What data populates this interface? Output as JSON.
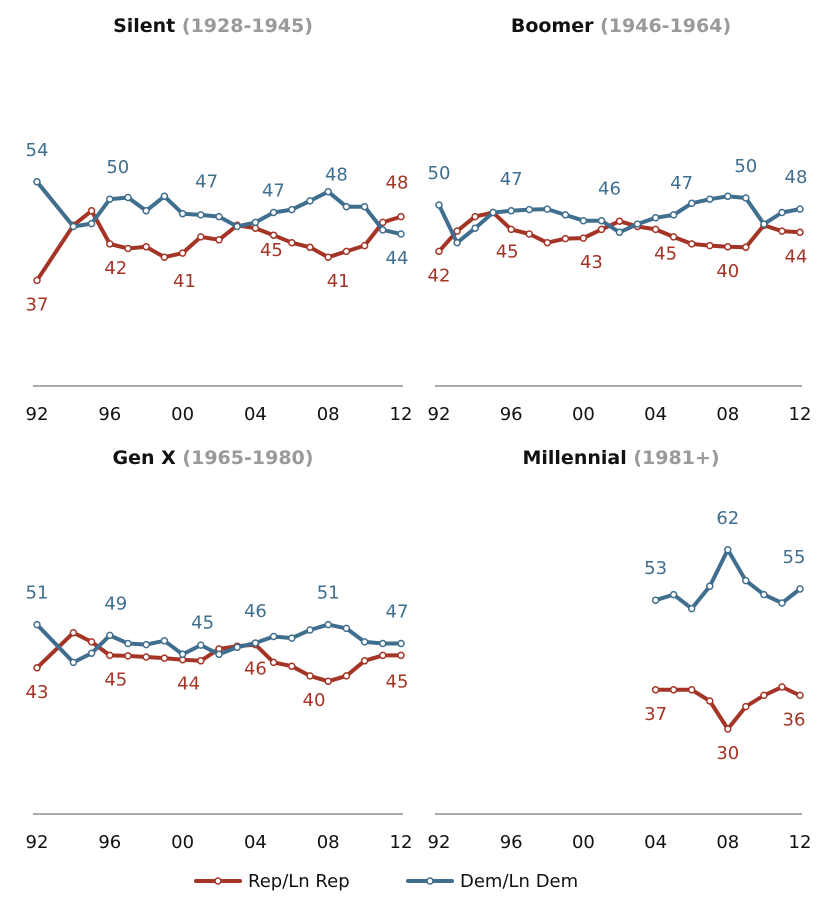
{
  "colors": {
    "rep": "#a43426",
    "dem": "#3f6e8f",
    "axis": "#555555",
    "subtitle": "#9a9a9a"
  },
  "legend": [
    {
      "key": "rep",
      "label": "Rep/Ln Rep"
    },
    {
      "key": "dem",
      "label": "Dem/Ln Dem"
    }
  ],
  "chart_data": [
    {
      "type": "line",
      "title": "Silent",
      "subtitle": "(1928-1945)",
      "x_ticks": [
        "92",
        "96",
        "00",
        "04",
        "08",
        "12"
      ],
      "xlim": [
        1992,
        2012
      ],
      "ylim": [
        20,
        65
      ],
      "series": [
        {
          "name": "Rep/Ln Rep",
          "key": "rep",
          "x": [
            1992,
            1994,
            1995,
            1996,
            1997,
            1998,
            1999,
            2000,
            2001,
            2002,
            2003,
            2004,
            2005,
            2006,
            2007,
            2008,
            2009,
            2010,
            2011,
            2012
          ],
          "values": [
            37,
            46.5,
            49,
            43.3,
            42.5,
            42.8,
            41,
            41.7,
            44.5,
            44,
            46.5,
            46,
            44.8,
            43.5,
            42.7,
            41,
            42,
            43,
            47,
            48
          ]
        },
        {
          "name": "Dem/Ln Dem",
          "key": "dem",
          "x": [
            1992,
            1994,
            1995,
            1996,
            1997,
            1998,
            1999,
            2000,
            2001,
            2002,
            2003,
            2004,
            2005,
            2006,
            2007,
            2008,
            2009,
            2010,
            2011,
            2012
          ],
          "values": [
            54,
            46.3,
            46.8,
            51,
            51.3,
            49,
            51.5,
            48.5,
            48.3,
            48,
            46.3,
            47,
            48.7,
            49.2,
            50.7,
            52.3,
            49.7,
            49.7,
            45.7,
            45
          ]
        }
      ],
      "data_labels": [
        {
          "series": "rep",
          "text": "37"
        },
        {
          "series": "rep",
          "text": "42"
        },
        {
          "series": "rep",
          "text": "41"
        },
        {
          "series": "rep",
          "text": "45"
        },
        {
          "series": "rep",
          "text": "41"
        },
        {
          "series": "rep",
          "text": "48"
        },
        {
          "series": "dem",
          "text": "54"
        },
        {
          "series": "dem",
          "text": "50"
        },
        {
          "series": "dem",
          "text": "47"
        },
        {
          "series": "dem",
          "text": "47"
        },
        {
          "series": "dem",
          "text": "48"
        },
        {
          "series": "dem",
          "text": "44"
        }
      ]
    },
    {
      "type": "line",
      "title": "Boomer",
      "subtitle": "(1946-1964)",
      "x_ticks": [
        "92",
        "96",
        "00",
        "04",
        "08",
        "12"
      ],
      "xlim": [
        1992,
        2012
      ],
      "ylim": [
        20,
        65
      ],
      "series": [
        {
          "name": "Rep/Ln Rep",
          "key": "rep",
          "x": [
            1992,
            1993,
            1994,
            1995,
            1996,
            1997,
            1998,
            1999,
            2000,
            2001,
            2002,
            2003,
            2004,
            2005,
            2006,
            2007,
            2008,
            2009,
            2010,
            2011,
            2012
          ],
          "values": [
            42,
            45.5,
            48,
            48.7,
            45.8,
            45,
            43.5,
            44.2,
            44.3,
            45.8,
            47.2,
            46.3,
            45.8,
            44.5,
            43.3,
            43,
            42.8,
            42.7,
            46.5,
            45.5,
            45.3
          ]
        },
        {
          "name": "Dem/Ln Dem",
          "key": "dem",
          "x": [
            1992,
            1993,
            1994,
            1995,
            1996,
            1997,
            1998,
            1999,
            2000,
            2001,
            2002,
            2003,
            2004,
            2005,
            2006,
            2007,
            2008,
            2009,
            2010,
            2011,
            2012
          ],
          "values": [
            50,
            43.5,
            46,
            48.7,
            49,
            49.2,
            49.3,
            48.3,
            47.3,
            47.3,
            45.3,
            46.7,
            47.8,
            48.3,
            50.3,
            51,
            51.5,
            51.2,
            46.7,
            48.7,
            49.3
          ]
        }
      ],
      "data_labels": [
        {
          "series": "rep",
          "text": "42"
        },
        {
          "series": "rep",
          "text": "45"
        },
        {
          "series": "rep",
          "text": "43"
        },
        {
          "series": "rep",
          "text": "45"
        },
        {
          "series": "rep",
          "text": "40"
        },
        {
          "series": "rep",
          "text": "44"
        },
        {
          "series": "dem",
          "text": "50"
        },
        {
          "series": "dem",
          "text": "47"
        },
        {
          "series": "dem",
          "text": "46"
        },
        {
          "series": "dem",
          "text": "47"
        },
        {
          "series": "dem",
          "text": "50"
        },
        {
          "series": "dem",
          "text": "48"
        }
      ]
    },
    {
      "type": "line",
      "title": "Gen X",
      "subtitle": "(1965-1980)",
      "x_ticks": [
        "92",
        "96",
        "00",
        "04",
        "08",
        "12"
      ],
      "xlim": [
        1992,
        2012
      ],
      "ylim": [
        20,
        65
      ],
      "series": [
        {
          "name": "Rep/Ln Rep",
          "key": "rep",
          "x": [
            1992,
            1994,
            1995,
            1996,
            1997,
            1998,
            1999,
            2000,
            2001,
            2002,
            2003,
            2004,
            2005,
            2006,
            2007,
            2008,
            2009,
            2010,
            2011,
            2012
          ],
          "values": [
            43,
            49.5,
            47.8,
            45.3,
            45.2,
            45,
            44.8,
            44.5,
            44.3,
            46.5,
            47,
            47.3,
            44,
            43.3,
            41.5,
            40.5,
            41.5,
            44.3,
            45.3,
            45.3
          ]
        },
        {
          "name": "Dem/Ln Dem",
          "key": "dem",
          "x": [
            1992,
            1994,
            1995,
            1996,
            1997,
            1998,
            1999,
            2000,
            2001,
            2002,
            2003,
            2004,
            2005,
            2006,
            2007,
            2008,
            2009,
            2010,
            2011,
            2012
          ],
          "values": [
            51,
            44,
            45.7,
            49,
            47.5,
            47.3,
            48,
            45.5,
            47.2,
            45.5,
            46.8,
            47.6,
            48.8,
            48.5,
            50,
            51,
            50.3,
            47.8,
            47.5,
            47.5
          ]
        }
      ],
      "data_labels": [
        {
          "series": "rep",
          "text": "43"
        },
        {
          "series": "rep",
          "text": "45"
        },
        {
          "series": "rep",
          "text": "44"
        },
        {
          "series": "rep",
          "text": "46"
        },
        {
          "series": "rep",
          "text": "40"
        },
        {
          "series": "rep",
          "text": "45"
        },
        {
          "series": "dem",
          "text": "51"
        },
        {
          "series": "dem",
          "text": "49"
        },
        {
          "series": "dem",
          "text": "45"
        },
        {
          "series": "dem",
          "text": "46"
        },
        {
          "series": "dem",
          "text": "51"
        },
        {
          "series": "dem",
          "text": "47"
        }
      ]
    },
    {
      "type": "line",
      "title": "Millennial",
      "subtitle": "(1981+)",
      "x_ticks": [
        "92",
        "96",
        "00",
        "04",
        "08",
        "12"
      ],
      "xlim": [
        1992,
        2012
      ],
      "ylim": [
        20,
        65
      ],
      "series": [
        {
          "name": "Rep/Ln Rep",
          "key": "rep",
          "x": [
            2004,
            2005,
            2006,
            2007,
            2008,
            2009,
            2010,
            2011,
            2012
          ],
          "values": [
            37,
            37,
            37,
            35,
            30,
            34,
            36,
            37.5,
            36
          ]
        },
        {
          "name": "Dem/Ln Dem",
          "key": "dem",
          "x": [
            2004,
            2005,
            2006,
            2007,
            2008,
            2009,
            2010,
            2011,
            2012
          ],
          "values": [
            53,
            54,
            51.5,
            55.5,
            62,
            56.5,
            54,
            52.5,
            55
          ]
        }
      ],
      "data_labels": [
        {
          "series": "rep",
          "text": "37"
        },
        {
          "series": "rep",
          "text": "30"
        },
        {
          "series": "rep",
          "text": "36"
        },
        {
          "series": "dem",
          "text": "53"
        },
        {
          "series": "dem",
          "text": "62"
        },
        {
          "series": "dem",
          "text": "55"
        }
      ]
    }
  ]
}
